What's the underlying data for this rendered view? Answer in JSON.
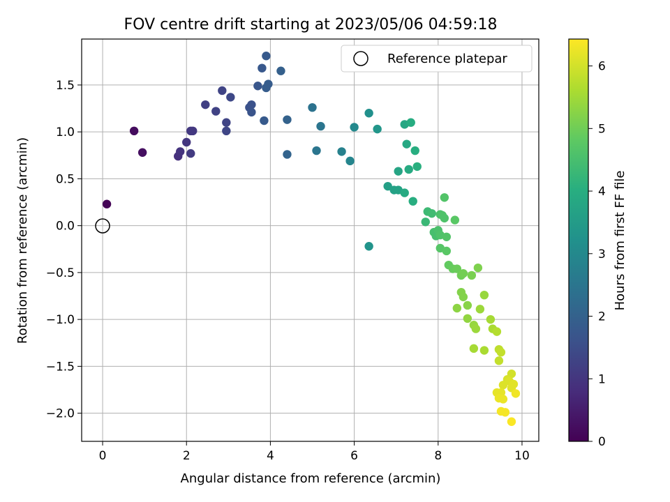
{
  "chart_data": {
    "type": "scatter",
    "title": "FOV centre drift starting at 2023/05/06 04:59:18",
    "xlabel": "Angular distance from reference (arcmin)",
    "ylabel": "Rotation from reference (arcmin)",
    "xlim": [
      -0.5,
      10.4
    ],
    "ylim": [
      -2.3,
      1.99
    ],
    "xticks": [
      0,
      2,
      4,
      6,
      8,
      10
    ],
    "xtick_labels": [
      "0",
      "2",
      "4",
      "6",
      "8",
      "10"
    ],
    "yticks": [
      -2.0,
      -1.5,
      -1.0,
      -0.5,
      0.0,
      0.5,
      1.0,
      1.5
    ],
    "ytick_labels": [
      "−2.0",
      "−1.5",
      "−1.0",
      "−0.5",
      "0.0",
      "0.5",
      "1.0",
      "1.5"
    ],
    "grid": true,
    "legend": {
      "location": "top-right",
      "entries": [
        {
          "label": "Reference platepar",
          "marker": "open-circle"
        }
      ]
    },
    "colorbar": {
      "label": "Hours from first FF file",
      "colormap": "viridis",
      "range": [
        0,
        6.43
      ],
      "ticks": [
        0,
        1,
        2,
        3,
        4,
        5,
        6
      ],
      "tick_labels": [
        "0",
        "1",
        "2",
        "3",
        "4",
        "5",
        "6"
      ]
    },
    "reference_point": {
      "x": 0,
      "y": 0
    },
    "points": [
      {
        "x": 0.1,
        "y": 0.23,
        "t": 0.05
      },
      {
        "x": 0.75,
        "y": 1.01,
        "t": 0.2
      },
      {
        "x": 0.95,
        "y": 0.78,
        "t": 0.25
      },
      {
        "x": 1.8,
        "y": 0.74,
        "t": 0.9
      },
      {
        "x": 1.85,
        "y": 0.79,
        "t": 0.95
      },
      {
        "x": 2.0,
        "y": 0.89,
        "t": 1.0
      },
      {
        "x": 2.1,
        "y": 1.01,
        "t": 1.05
      },
      {
        "x": 2.15,
        "y": 1.01,
        "t": 1.05
      },
      {
        "x": 2.1,
        "y": 0.77,
        "t": 1.1
      },
      {
        "x": 2.45,
        "y": 1.29,
        "t": 1.2
      },
      {
        "x": 2.7,
        "y": 1.22,
        "t": 1.25
      },
      {
        "x": 2.85,
        "y": 1.44,
        "t": 1.3
      },
      {
        "x": 2.95,
        "y": 1.1,
        "t": 1.3
      },
      {
        "x": 2.95,
        "y": 1.01,
        "t": 1.35
      },
      {
        "x": 3.05,
        "y": 1.37,
        "t": 1.4
      },
      {
        "x": 3.5,
        "y": 1.26,
        "t": 1.6
      },
      {
        "x": 3.55,
        "y": 1.29,
        "t": 1.6
      },
      {
        "x": 3.55,
        "y": 1.21,
        "t": 1.65
      },
      {
        "x": 3.7,
        "y": 1.49,
        "t": 1.7
      },
      {
        "x": 3.8,
        "y": 1.68,
        "t": 1.75
      },
      {
        "x": 3.85,
        "y": 1.12,
        "t": 1.8
      },
      {
        "x": 3.9,
        "y": 1.81,
        "t": 1.8
      },
      {
        "x": 3.9,
        "y": 1.47,
        "t": 1.85
      },
      {
        "x": 3.95,
        "y": 1.51,
        "t": 1.85
      },
      {
        "x": 4.25,
        "y": 1.65,
        "t": 1.95
      },
      {
        "x": 4.4,
        "y": 0.76,
        "t": 2.05
      },
      {
        "x": 4.4,
        "y": 1.13,
        "t": 2.0
      },
      {
        "x": 5.0,
        "y": 1.26,
        "t": 2.4
      },
      {
        "x": 5.1,
        "y": 0.8,
        "t": 2.5
      },
      {
        "x": 5.2,
        "y": 1.06,
        "t": 2.5
      },
      {
        "x": 5.7,
        "y": 0.79,
        "t": 2.8
      },
      {
        "x": 5.9,
        "y": 0.69,
        "t": 2.9
      },
      {
        "x": 6.0,
        "y": 1.05,
        "t": 3.0
      },
      {
        "x": 6.35,
        "y": 1.2,
        "t": 3.2
      },
      {
        "x": 6.35,
        "y": -0.22,
        "t": 3.3
      },
      {
        "x": 6.55,
        "y": 1.03,
        "t": 3.35
      },
      {
        "x": 6.8,
        "y": 0.42,
        "t": 3.6
      },
      {
        "x": 6.95,
        "y": 0.38,
        "t": 3.65
      },
      {
        "x": 7.05,
        "y": 0.38,
        "t": 3.7
      },
      {
        "x": 7.05,
        "y": 0.58,
        "t": 3.75
      },
      {
        "x": 7.2,
        "y": 1.08,
        "t": 3.8
      },
      {
        "x": 7.25,
        "y": 0.87,
        "t": 3.85
      },
      {
        "x": 7.2,
        "y": 0.35,
        "t": 3.9
      },
      {
        "x": 7.3,
        "y": 0.6,
        "t": 3.9
      },
      {
        "x": 7.35,
        "y": 1.1,
        "t": 3.95
      },
      {
        "x": 7.4,
        "y": 0.26,
        "t": 4.0
      },
      {
        "x": 7.45,
        "y": 0.8,
        "t": 4.0
      },
      {
        "x": 7.5,
        "y": 0.63,
        "t": 4.05
      },
      {
        "x": 7.7,
        "y": 0.04,
        "t": 4.3
      },
      {
        "x": 7.75,
        "y": 0.15,
        "t": 4.35
      },
      {
        "x": 7.85,
        "y": 0.13,
        "t": 4.4
      },
      {
        "x": 7.9,
        "y": -0.07,
        "t": 4.5
      },
      {
        "x": 7.95,
        "y": -0.11,
        "t": 4.5
      },
      {
        "x": 8.0,
        "y": -0.05,
        "t": 4.55
      },
      {
        "x": 8.05,
        "y": -0.1,
        "t": 4.6
      },
      {
        "x": 8.05,
        "y": 0.12,
        "t": 4.55
      },
      {
        "x": 8.1,
        "y": 0.11,
        "t": 4.6
      },
      {
        "x": 8.15,
        "y": 0.08,
        "t": 4.6
      },
      {
        "x": 8.15,
        "y": 0.3,
        "t": 4.65
      },
      {
        "x": 8.2,
        "y": -0.12,
        "t": 4.65
      },
      {
        "x": 8.05,
        "y": -0.24,
        "t": 4.7
      },
      {
        "x": 8.2,
        "y": -0.27,
        "t": 4.75
      },
      {
        "x": 8.4,
        "y": 0.06,
        "t": 4.75
      },
      {
        "x": 8.25,
        "y": -0.42,
        "t": 4.85
      },
      {
        "x": 8.35,
        "y": -0.46,
        "t": 4.9
      },
      {
        "x": 8.45,
        "y": -0.46,
        "t": 4.95
      },
      {
        "x": 8.55,
        "y": -0.53,
        "t": 5.0
      },
      {
        "x": 8.6,
        "y": -0.51,
        "t": 5.05
      },
      {
        "x": 8.8,
        "y": -0.53,
        "t": 5.1
      },
      {
        "x": 8.95,
        "y": -0.45,
        "t": 5.15
      },
      {
        "x": 8.55,
        "y": -0.71,
        "t": 5.2
      },
      {
        "x": 8.6,
        "y": -0.76,
        "t": 5.2
      },
      {
        "x": 8.7,
        "y": -0.85,
        "t": 5.25
      },
      {
        "x": 8.45,
        "y": -0.88,
        "t": 5.3
      },
      {
        "x": 8.7,
        "y": -0.99,
        "t": 5.35
      },
      {
        "x": 8.85,
        "y": -1.06,
        "t": 5.4
      },
      {
        "x": 8.9,
        "y": -1.1,
        "t": 5.45
      },
      {
        "x": 9.1,
        "y": -0.74,
        "t": 5.4
      },
      {
        "x": 9.0,
        "y": -0.89,
        "t": 5.45
      },
      {
        "x": 9.25,
        "y": -1.0,
        "t": 5.55
      },
      {
        "x": 9.3,
        "y": -1.1,
        "t": 5.6
      },
      {
        "x": 8.85,
        "y": -1.31,
        "t": 5.55
      },
      {
        "x": 9.1,
        "y": -1.33,
        "t": 5.6
      },
      {
        "x": 9.4,
        "y": -1.13,
        "t": 5.7
      },
      {
        "x": 9.45,
        "y": -1.32,
        "t": 5.8
      },
      {
        "x": 9.5,
        "y": -1.35,
        "t": 5.85
      },
      {
        "x": 9.45,
        "y": -1.44,
        "t": 5.85
      },
      {
        "x": 9.75,
        "y": -1.58,
        "t": 6.0
      },
      {
        "x": 9.65,
        "y": -1.64,
        "t": 6.05
      },
      {
        "x": 9.55,
        "y": -1.7,
        "t": 6.1
      },
      {
        "x": 9.7,
        "y": -1.66,
        "t": 6.1
      },
      {
        "x": 9.75,
        "y": -1.73,
        "t": 6.15
      },
      {
        "x": 9.8,
        "y": -1.69,
        "t": 6.15
      },
      {
        "x": 9.4,
        "y": -1.78,
        "t": 6.2
      },
      {
        "x": 9.5,
        "y": -1.78,
        "t": 6.2
      },
      {
        "x": 9.45,
        "y": -1.84,
        "t": 6.25
      },
      {
        "x": 9.55,
        "y": -1.85,
        "t": 6.25
      },
      {
        "x": 9.85,
        "y": -1.79,
        "t": 6.3
      },
      {
        "x": 9.5,
        "y": -1.98,
        "t": 6.35
      },
      {
        "x": 9.6,
        "y": -1.99,
        "t": 6.35
      },
      {
        "x": 9.75,
        "y": -2.09,
        "t": 6.4
      }
    ]
  }
}
